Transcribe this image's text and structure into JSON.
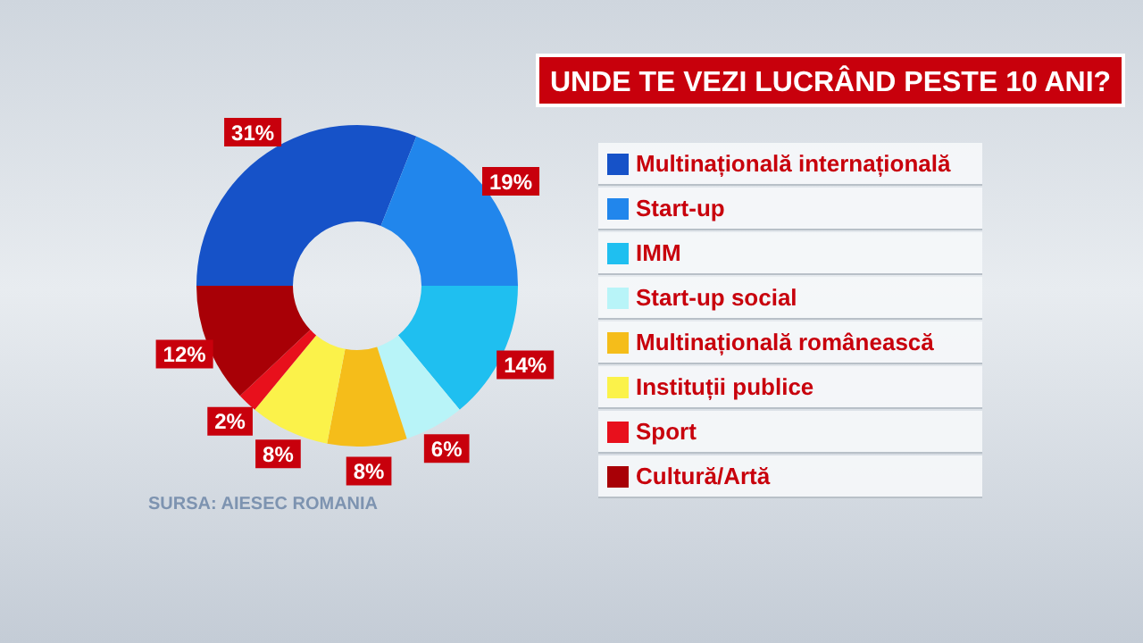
{
  "chart_data": {
    "type": "donut",
    "title": "UNDE TE VEZI LUCRÂND PESTE 10 ANI?",
    "categories": [
      "Multinațională internațională",
      "Start-up",
      "IMM",
      "Start-up social",
      "Multinațională românească",
      "Instituții publice",
      "Sport",
      "Cultură/Artă"
    ],
    "values": [
      31,
      19,
      14,
      6,
      8,
      8,
      2,
      12
    ],
    "colors": [
      "#1652c8",
      "#2186ec",
      "#1fbff0",
      "#b8f4f8",
      "#f5bd1a",
      "#fbf24a",
      "#e8101c",
      "#a80006"
    ],
    "value_labels": [
      "31%",
      "19%",
      "14%",
      "6%",
      "8%",
      "8%",
      "2%",
      "12%"
    ],
    "legend": "right",
    "annotations": [
      "SURSA: AIESEC ROMANIA"
    ]
  }
}
